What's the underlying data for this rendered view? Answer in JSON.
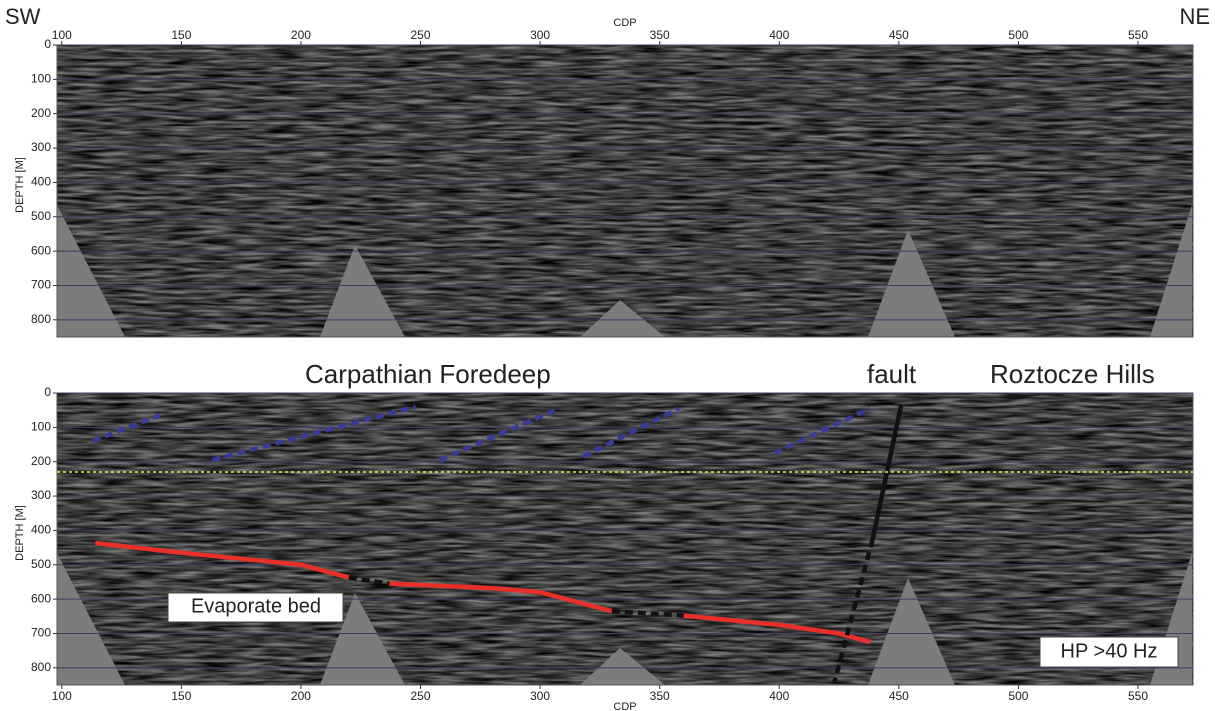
{
  "chart_data": [
    {
      "type": "seismic",
      "x_label": "CDP",
      "y_label": "DEPTH [M]",
      "left_label": "SW",
      "right_label": "NE",
      "x_axis": "top",
      "xlim": [
        98,
        573
      ],
      "ylim": [
        0,
        850
      ],
      "xticks": [
        100,
        150,
        200,
        250,
        300,
        350,
        400,
        450,
        500,
        550
      ],
      "yticks": [
        0,
        100,
        200,
        300,
        400,
        500,
        600,
        700,
        800
      ],
      "grid": true
    },
    {
      "type": "seismic",
      "x_label": "CDP",
      "y_label": "DEPTH [M]",
      "x_axis": "bottom",
      "xlim": [
        98,
        573
      ],
      "ylim": [
        0,
        850
      ],
      "xticks": [
        100,
        150,
        200,
        250,
        300,
        350,
        400,
        450,
        500,
        550
      ],
      "yticks": [
        0,
        100,
        200,
        300,
        400,
        500,
        600,
        700,
        800
      ],
      "grid": true,
      "annotations": [
        "Carpathian Foredeep",
        "fault",
        "Roztocze Hills",
        "Evaporate bed",
        "HP >40 Hz"
      ],
      "lines": [
        {
          "color": "#e8302a",
          "style": "solid",
          "x": [
            114,
            150,
            200,
            220
          ],
          "y": [
            437,
            465,
            500,
            537
          ]
        },
        {
          "color": "#e8302a",
          "style": "solid",
          "x": [
            237,
            280,
            300,
            330
          ],
          "y": [
            555,
            568,
            580,
            635
          ]
        },
        {
          "color": "#e8302a",
          "style": "solid",
          "x": [
            360,
            400,
            425,
            438
          ],
          "y": [
            648,
            675,
            700,
            725
          ]
        },
        {
          "color": "#111111",
          "style": "dashed",
          "x": [
            220,
            237
          ],
          "y": [
            537,
            555
          ]
        },
        {
          "color": "#111111",
          "style": "dashed",
          "x": [
            330,
            360
          ],
          "y": [
            635,
            648
          ]
        },
        {
          "color": "#111111",
          "style": "solid",
          "x": [
            451,
            439
          ],
          "y": [
            35,
            427
          ]
        },
        {
          "color": "#111111",
          "style": "dashed",
          "x": [
            439,
            423
          ],
          "y": [
            427,
            843
          ]
        },
        {
          "color": "#3a3a9a",
          "style": "dashed",
          "x": [
            113,
            141
          ],
          "y": [
            140,
            65
          ]
        },
        {
          "color": "#3a3a9a",
          "style": "dashed",
          "x": [
            163,
            248
          ],
          "y": [
            195,
            40
          ]
        },
        {
          "color": "#3a3a9a",
          "style": "dashed",
          "x": [
            258,
            308
          ],
          "y": [
            195,
            45
          ]
        },
        {
          "color": "#3a3a9a",
          "style": "dashed",
          "x": [
            318,
            358
          ],
          "y": [
            185,
            45
          ]
        },
        {
          "color": "#3a3a9a",
          "style": "dashed",
          "x": [
            398,
            438
          ],
          "y": [
            175,
            45
          ]
        },
        {
          "color": "#e6e64a",
          "style": "dotted",
          "x": [
            98,
            573
          ],
          "y": [
            230,
            230
          ]
        }
      ]
    }
  ]
}
